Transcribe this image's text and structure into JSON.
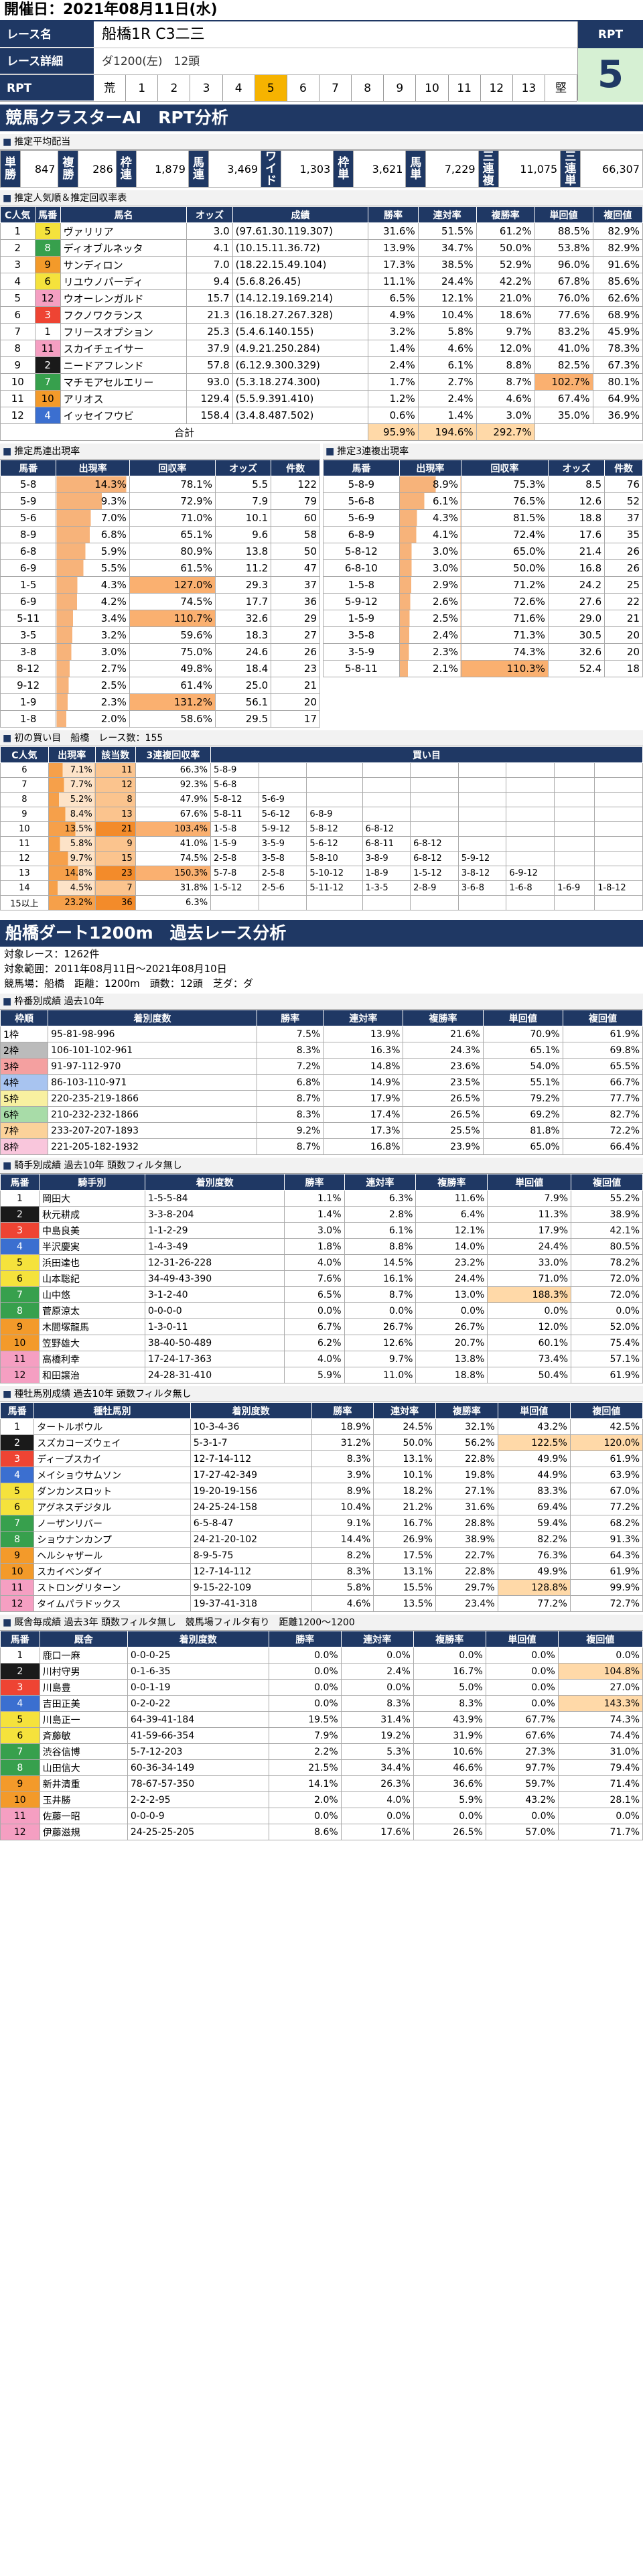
{
  "header": {
    "date": "開催日：2021年08月11日(水)",
    "race_name_label": "レース名",
    "race_name": "船橋1R C3二三",
    "detail_label": "レース詳細",
    "detail": "ダ1200(左)　12頭",
    "rpt_label": "RPT",
    "rpt_cells": [
      "荒",
      "1",
      "2",
      "3",
      "4",
      "5",
      "6",
      "7",
      "8",
      "9",
      "10",
      "11",
      "12",
      "13",
      "堅"
    ],
    "rpt_selected": 5,
    "rpt_value": "5"
  },
  "ai_title": "競馬クラスターAI　RPT分析",
  "payouts": {
    "title": "推定平均配当",
    "cells": [
      [
        "単勝",
        "847"
      ],
      [
        "複勝",
        "286"
      ],
      [
        "枠連",
        "1,879"
      ],
      [
        "馬連",
        "3,469"
      ],
      [
        "ワイド",
        "1,303"
      ],
      [
        "枠単",
        "3,621"
      ],
      [
        "馬単",
        "7,229"
      ],
      [
        "三連複",
        "11,075"
      ],
      [
        "三連単",
        "66,307"
      ]
    ]
  },
  "pop": {
    "title": "推定人気順＆推定回収率表",
    "headers": [
      "C人気",
      "馬番",
      "馬名",
      "オッズ",
      "成績",
      "勝率",
      "連対率",
      "複勝率",
      "単回値",
      "複回値"
    ],
    "rows": [
      [
        "1",
        "5",
        "ヴァリリア",
        "3.0",
        "(97.61.30.119.307)",
        "31.6%",
        "51.5%",
        "61.2%",
        "88.5%",
        "82.9%"
      ],
      [
        "2",
        "8",
        "ディオブルネッタ",
        "4.1",
        "(10.15.11.36.72)",
        "13.9%",
        "34.7%",
        "50.0%",
        "53.8%",
        "82.9%"
      ],
      [
        "3",
        "9",
        "サンディロン",
        "7.0",
        "(18.22.15.49.104)",
        "17.3%",
        "38.5%",
        "52.9%",
        "96.0%",
        "91.6%"
      ],
      [
        "4",
        "6",
        "リユウノパーディ",
        "9.4",
        "(5.6.8.26.45)",
        "11.1%",
        "24.4%",
        "42.2%",
        "67.8%",
        "85.6%"
      ],
      [
        "5",
        "12",
        "ウオーレンガルド",
        "15.7",
        "(14.12.19.169.214)",
        "6.5%",
        "12.1%",
        "21.0%",
        "76.0%",
        "62.6%"
      ],
      [
        "6",
        "3",
        "フクノワクランス",
        "21.3",
        "(16.18.27.267.328)",
        "4.9%",
        "10.4%",
        "18.6%",
        "77.6%",
        "68.9%"
      ],
      [
        "7",
        "1",
        "フリースオプション",
        "25.3",
        "(5.4.6.140.155)",
        "3.2%",
        "5.8%",
        "9.7%",
        "83.2%",
        "45.9%"
      ],
      [
        "8",
        "11",
        "スカイチェイサー",
        "37.9",
        "(4.9.21.250.284)",
        "1.4%",
        "4.6%",
        "12.0%",
        "41.0%",
        "78.3%"
      ],
      [
        "9",
        "2",
        "ニードアフレンド",
        "57.8",
        "(6.12.9.300.329)",
        "2.4%",
        "6.1%",
        "8.8%",
        "82.5%",
        "67.3%"
      ],
      [
        "10",
        "7",
        "マチモアセルエリー",
        "93.0",
        "(5.3.18.274.300)",
        "1.7%",
        "2.7%",
        "8.7%",
        "102.7%",
        "80.1%"
      ],
      [
        "11",
        "10",
        "アリオス",
        "129.4",
        "(5.5.9.391.410)",
        "1.2%",
        "2.4%",
        "4.6%",
        "67.4%",
        "64.9%"
      ],
      [
        "12",
        "4",
        "イッセイフウビ",
        "158.4",
        "(3.4.8.487.502)",
        "0.6%",
        "1.4%",
        "3.0%",
        "35.0%",
        "36.9%"
      ]
    ],
    "total_label": "合計",
    "totals": [
      "95.9%",
      "194.6%",
      "292.7%"
    ]
  },
  "umaren": {
    "title": "推定馬連出現率",
    "headers": [
      "馬番",
      "出現率",
      "回収率",
      "オッズ",
      "件数"
    ],
    "rows": [
      [
        "5-8",
        "14.3%",
        "78.1%",
        "5.5",
        "122"
      ],
      [
        "5-9",
        "9.3%",
        "72.9%",
        "7.9",
        "79"
      ],
      [
        "5-6",
        "7.0%",
        "71.0%",
        "10.1",
        "60"
      ],
      [
        "8-9",
        "6.8%",
        "65.1%",
        "9.6",
        "58"
      ],
      [
        "6-8",
        "5.9%",
        "80.9%",
        "13.8",
        "50"
      ],
      [
        "6-9",
        "5.5%",
        "61.5%",
        "11.2",
        "47"
      ],
      [
        "1-5",
        "4.3%",
        "127.0%",
        "29.3",
        "37"
      ],
      [
        "6-9",
        "4.2%",
        "74.5%",
        "17.7",
        "36"
      ],
      [
        "5-11",
        "3.4%",
        "110.7%",
        "32.6",
        "29"
      ],
      [
        "3-5",
        "3.2%",
        "59.6%",
        "18.3",
        "27"
      ],
      [
        "3-8",
        "3.0%",
        "75.0%",
        "24.6",
        "26"
      ],
      [
        "8-12",
        "2.7%",
        "49.8%",
        "18.4",
        "23"
      ],
      [
        "9-12",
        "2.5%",
        "61.4%",
        "25.0",
        "21"
      ],
      [
        "1-9",
        "2.3%",
        "131.2%",
        "56.1",
        "20"
      ],
      [
        "1-8",
        "2.0%",
        "58.6%",
        "29.5",
        "17"
      ]
    ]
  },
  "sanren": {
    "title": "推定3連複出現率",
    "headers": [
      "馬番",
      "出現率",
      "回収率",
      "オッズ",
      "件数"
    ],
    "rows": [
      [
        "5-8-9",
        "8.9%",
        "75.3%",
        "8.5",
        "76"
      ],
      [
        "5-6-8",
        "6.1%",
        "76.5%",
        "12.6",
        "52"
      ],
      [
        "5-6-9",
        "4.3%",
        "81.5%",
        "18.8",
        "37"
      ],
      [
        "6-8-9",
        "4.1%",
        "72.4%",
        "17.6",
        "35"
      ],
      [
        "5-8-12",
        "3.0%",
        "65.0%",
        "21.4",
        "26"
      ],
      [
        "6-8-10",
        "3.0%",
        "50.0%",
        "16.8",
        "26"
      ],
      [
        "1-5-8",
        "2.9%",
        "71.2%",
        "24.2",
        "25"
      ],
      [
        "5-9-12",
        "2.6%",
        "72.6%",
        "27.6",
        "22"
      ],
      [
        "1-5-9",
        "2.5%",
        "71.6%",
        "29.0",
        "21"
      ],
      [
        "3-5-8",
        "2.4%",
        "71.3%",
        "30.5",
        "20"
      ],
      [
        "3-5-9",
        "2.3%",
        "74.3%",
        "32.6",
        "20"
      ],
      [
        "5-8-11",
        "2.1%",
        "110.3%",
        "52.4",
        "18"
      ]
    ]
  },
  "buy": {
    "title": "初の買い目　船橋　レース数：155",
    "headers": [
      "C人気",
      "出現率",
      "該当数",
      "3連複回収率",
      "買い目"
    ],
    "rows": [
      {
        "pop": "6",
        "rate": "7.1%",
        "n": "11",
        "rec": "66.3%",
        "combos": [
          "5-8-9"
        ]
      },
      {
        "pop": "7",
        "rate": "7.7%",
        "n": "12",
        "rec": "92.3%",
        "combos": [
          "5-6-8"
        ]
      },
      {
        "pop": "8",
        "rate": "5.2%",
        "n": "8",
        "rec": "47.9%",
        "combos": [
          "5-8-12",
          "5-6-9"
        ]
      },
      {
        "pop": "9",
        "rate": "8.4%",
        "n": "13",
        "rec": "67.6%",
        "combos": [
          "5-8-11",
          "5-6-12",
          "6-8-9"
        ]
      },
      {
        "pop": "10",
        "rate": "13.5%",
        "n": "21",
        "rec": "103.4%",
        "combos": [
          "1-5-8",
          "5-9-12",
          "5-8-12",
          "6-8-12"
        ]
      },
      {
        "pop": "11",
        "rate": "5.8%",
        "n": "9",
        "rec": "41.0%",
        "combos": [
          "1-5-9",
          "3-5-9",
          "5-6-12",
          "6-8-11",
          "6-8-12"
        ]
      },
      {
        "pop": "12",
        "rate": "9.7%",
        "n": "15",
        "rec": "74.5%",
        "combos": [
          "2-5-8",
          "3-5-8",
          "5-8-10",
          "3-8-9",
          "6-8-12",
          "5-9-12"
        ]
      },
      {
        "pop": "13",
        "rate": "14.8%",
        "n": "23",
        "rec": "150.3%",
        "combos": [
          "5-7-8",
          "2-5-8",
          "5-10-12",
          "1-8-9",
          "1-5-12",
          "3-8-12",
          "6-9-12"
        ]
      },
      {
        "pop": "14",
        "rate": "4.5%",
        "n": "7",
        "rec": "31.8%",
        "combos": [
          "1-5-12",
          "2-5-6",
          "5-11-12",
          "1-3-5",
          "2-8-9",
          "3-6-8",
          "1-6-8",
          "1-6-9",
          "1-8-12"
        ]
      },
      {
        "pop": "15以上",
        "rate": "23.2%",
        "n": "36",
        "rec": "6.3%",
        "combos": []
      }
    ]
  },
  "course": {
    "title": "船橋ダート1200m　過去レース分析",
    "count": "対象レース：1262件",
    "range": "対象範囲：2011年08月11日～2021年08月10日",
    "cond": "競馬場：船橋　距離：1200m　頭数：12頭　芝ダ：ダ"
  },
  "waku": {
    "title": "枠番別成績 過去10年",
    "headers": [
      "枠順",
      "着別度数",
      "勝率",
      "連対率",
      "複勝率",
      "単回値",
      "複回値"
    ],
    "rows": [
      [
        "1枠",
        "95-81-98-996",
        "7.5%",
        "13.9%",
        "21.6%",
        "70.9%",
        "61.9%"
      ],
      [
        "2枠",
        "106-101-102-961",
        "8.3%",
        "16.3%",
        "24.3%",
        "65.1%",
        "69.8%"
      ],
      [
        "3枠",
        "91-97-112-970",
        "7.2%",
        "14.8%",
        "23.6%",
        "54.0%",
        "65.5%"
      ],
      [
        "4枠",
        "86-103-110-971",
        "6.8%",
        "14.9%",
        "23.5%",
        "55.1%",
        "66.7%"
      ],
      [
        "5枠",
        "220-235-219-1866",
        "8.7%",
        "17.9%",
        "26.5%",
        "79.2%",
        "77.7%"
      ],
      [
        "6枠",
        "210-232-232-1866",
        "8.3%",
        "17.4%",
        "26.5%",
        "69.2%",
        "82.7%"
      ],
      [
        "7枠",
        "233-207-207-1893",
        "9.2%",
        "17.3%",
        "25.5%",
        "81.8%",
        "72.2%"
      ],
      [
        "8枠",
        "221-205-182-1932",
        "8.7%",
        "16.8%",
        "23.9%",
        "65.0%",
        "66.4%"
      ]
    ]
  },
  "jockey": {
    "title": "騎手別成績 過去10年 頭数フィルタ無し",
    "headers": [
      "馬番",
      "騎手別",
      "着別度数",
      "勝率",
      "連対率",
      "複勝率",
      "単回値",
      "複回値"
    ],
    "rows": [
      [
        "1",
        "岡田大",
        "1-5-5-84",
        "1.1%",
        "6.3%",
        "11.6%",
        "7.9%",
        "55.2%"
      ],
      [
        "2",
        "秋元耕成",
        "3-3-8-204",
        "1.4%",
        "2.8%",
        "6.4%",
        "11.3%",
        "38.9%"
      ],
      [
        "3",
        "中島良美",
        "1-1-2-29",
        "3.0%",
        "6.1%",
        "12.1%",
        "17.9%",
        "42.1%"
      ],
      [
        "4",
        "半沢慶実",
        "1-4-3-49",
        "1.8%",
        "8.8%",
        "14.0%",
        "24.4%",
        "80.5%"
      ],
      [
        "5",
        "浜田達也",
        "12-31-26-228",
        "4.0%",
        "14.5%",
        "23.2%",
        "33.0%",
        "78.2%"
      ],
      [
        "6",
        "山本聡紀",
        "34-49-43-390",
        "7.6%",
        "16.1%",
        "24.4%",
        "71.0%",
        "72.0%"
      ],
      [
        "7",
        "山中悠",
        "3-1-2-40",
        "6.5%",
        "8.7%",
        "13.0%",
        "188.3%",
        "72.0%"
      ],
      [
        "8",
        "菅原涼太",
        "0-0-0-0",
        "0.0%",
        "0.0%",
        "0.0%",
        "0.0%",
        "0.0%"
      ],
      [
        "9",
        "木間塚龍馬",
        "1-3-0-11",
        "6.7%",
        "26.7%",
        "26.7%",
        "12.0%",
        "52.0%"
      ],
      [
        "10",
        "笠野雄大",
        "38-40-50-489",
        "6.2%",
        "12.6%",
        "20.7%",
        "60.1%",
        "75.4%"
      ],
      [
        "11",
        "高橋利幸",
        "17-24-17-363",
        "4.0%",
        "9.7%",
        "13.8%",
        "73.4%",
        "57.1%"
      ],
      [
        "12",
        "和田譲治",
        "24-28-31-410",
        "5.9%",
        "11.0%",
        "18.8%",
        "50.4%",
        "61.9%"
      ]
    ]
  },
  "sire": {
    "title": "種牡馬別成績 過去10年 頭数フィルタ無し",
    "headers": [
      "馬番",
      "種牡馬別",
      "着別度数",
      "勝率",
      "連対率",
      "複勝率",
      "単回値",
      "複回値"
    ],
    "rows": [
      [
        "1",
        "タートルボウル",
        "10-3-4-36",
        "18.9%",
        "24.5%",
        "32.1%",
        "43.2%",
        "42.5%"
      ],
      [
        "2",
        "スズカコーズウェイ",
        "5-3-1-7",
        "31.2%",
        "50.0%",
        "56.2%",
        "122.5%",
        "120.0%"
      ],
      [
        "3",
        "ディープスカイ",
        "12-7-14-112",
        "8.3%",
        "13.1%",
        "22.8%",
        "49.9%",
        "61.9%"
      ],
      [
        "4",
        "メイショウサムソン",
        "17-27-42-349",
        "3.9%",
        "10.1%",
        "19.8%",
        "44.9%",
        "63.9%"
      ],
      [
        "5",
        "ダンカンスロット",
        "19-20-19-156",
        "8.9%",
        "18.2%",
        "27.1%",
        "83.3%",
        "67.0%"
      ],
      [
        "6",
        "アグネスデジタル",
        "24-25-24-158",
        "10.4%",
        "21.2%",
        "31.6%",
        "69.4%",
        "77.2%"
      ],
      [
        "7",
        "ノーザンリバー",
        "6-5-8-47",
        "9.1%",
        "16.7%",
        "28.8%",
        "59.4%",
        "68.2%"
      ],
      [
        "8",
        "ショウナンカンプ",
        "24-21-20-102",
        "14.4%",
        "26.9%",
        "38.9%",
        "82.2%",
        "91.3%"
      ],
      [
        "9",
        "ヘルシャザール",
        "8-9-5-75",
        "8.2%",
        "17.5%",
        "22.7%",
        "76.3%",
        "64.3%"
      ],
      [
        "10",
        "スカイベンダイ",
        "12-7-14-112",
        "8.3%",
        "13.1%",
        "22.8%",
        "49.9%",
        "61.9%"
      ],
      [
        "11",
        "ストロングリターン",
        "9-15-22-109",
        "5.8%",
        "15.5%",
        "29.7%",
        "128.8%",
        "99.9%"
      ],
      [
        "12",
        "タイムパラドックス",
        "19-37-41-318",
        "4.6%",
        "13.5%",
        "23.4%",
        "77.2%",
        "72.7%"
      ]
    ]
  },
  "trainer": {
    "title": "厩舎毎成績 過去3年 頭数フィルタ無し　競馬場フィルタ有り　距離1200～1200",
    "headers": [
      "馬番",
      "厩舎",
      "着別度数",
      "勝率",
      "連対率",
      "複勝率",
      "単回値",
      "複回値"
    ],
    "rows": [
      [
        "1",
        "鹿口一麻",
        "0-0-0-25",
        "0.0%",
        "0.0%",
        "0.0%",
        "0.0%",
        "0.0%"
      ],
      [
        "2",
        "川村守男",
        "0-1-6-35",
        "0.0%",
        "2.4%",
        "16.7%",
        "0.0%",
        "104.8%"
      ],
      [
        "3",
        "川島豊",
        "0-0-1-19",
        "0.0%",
        "0.0%",
        "5.0%",
        "0.0%",
        "27.0%"
      ],
      [
        "4",
        "吉田正美",
        "0-2-0-22",
        "0.0%",
        "8.3%",
        "8.3%",
        "0.0%",
        "143.3%"
      ],
      [
        "5",
        "川島正一",
        "64-39-41-184",
        "19.5%",
        "31.4%",
        "43.9%",
        "67.7%",
        "74.3%"
      ],
      [
        "6",
        "斉藤敏",
        "41-59-66-354",
        "7.9%",
        "19.2%",
        "31.9%",
        "67.6%",
        "74.4%"
      ],
      [
        "7",
        "渋谷信博",
        "5-7-12-203",
        "2.2%",
        "5.3%",
        "10.6%",
        "27.3%",
        "31.0%"
      ],
      [
        "8",
        "山田信大",
        "60-36-34-149",
        "21.5%",
        "34.4%",
        "46.6%",
        "97.7%",
        "79.4%"
      ],
      [
        "9",
        "新井清重",
        "78-67-57-350",
        "14.1%",
        "26.3%",
        "36.6%",
        "59.7%",
        "71.4%"
      ],
      [
        "10",
        "玉井勝",
        "2-2-2-95",
        "2.0%",
        "4.0%",
        "5.9%",
        "43.2%",
        "28.1%"
      ],
      [
        "11",
        "佐藤一昭",
        "0-0-0-9",
        "0.0%",
        "0.0%",
        "0.0%",
        "0.0%",
        "0.0%"
      ],
      [
        "12",
        "伊藤滋規",
        "24-25-25-205",
        "8.6%",
        "17.6%",
        "26.5%",
        "57.0%",
        "71.7%"
      ]
    ]
  }
}
